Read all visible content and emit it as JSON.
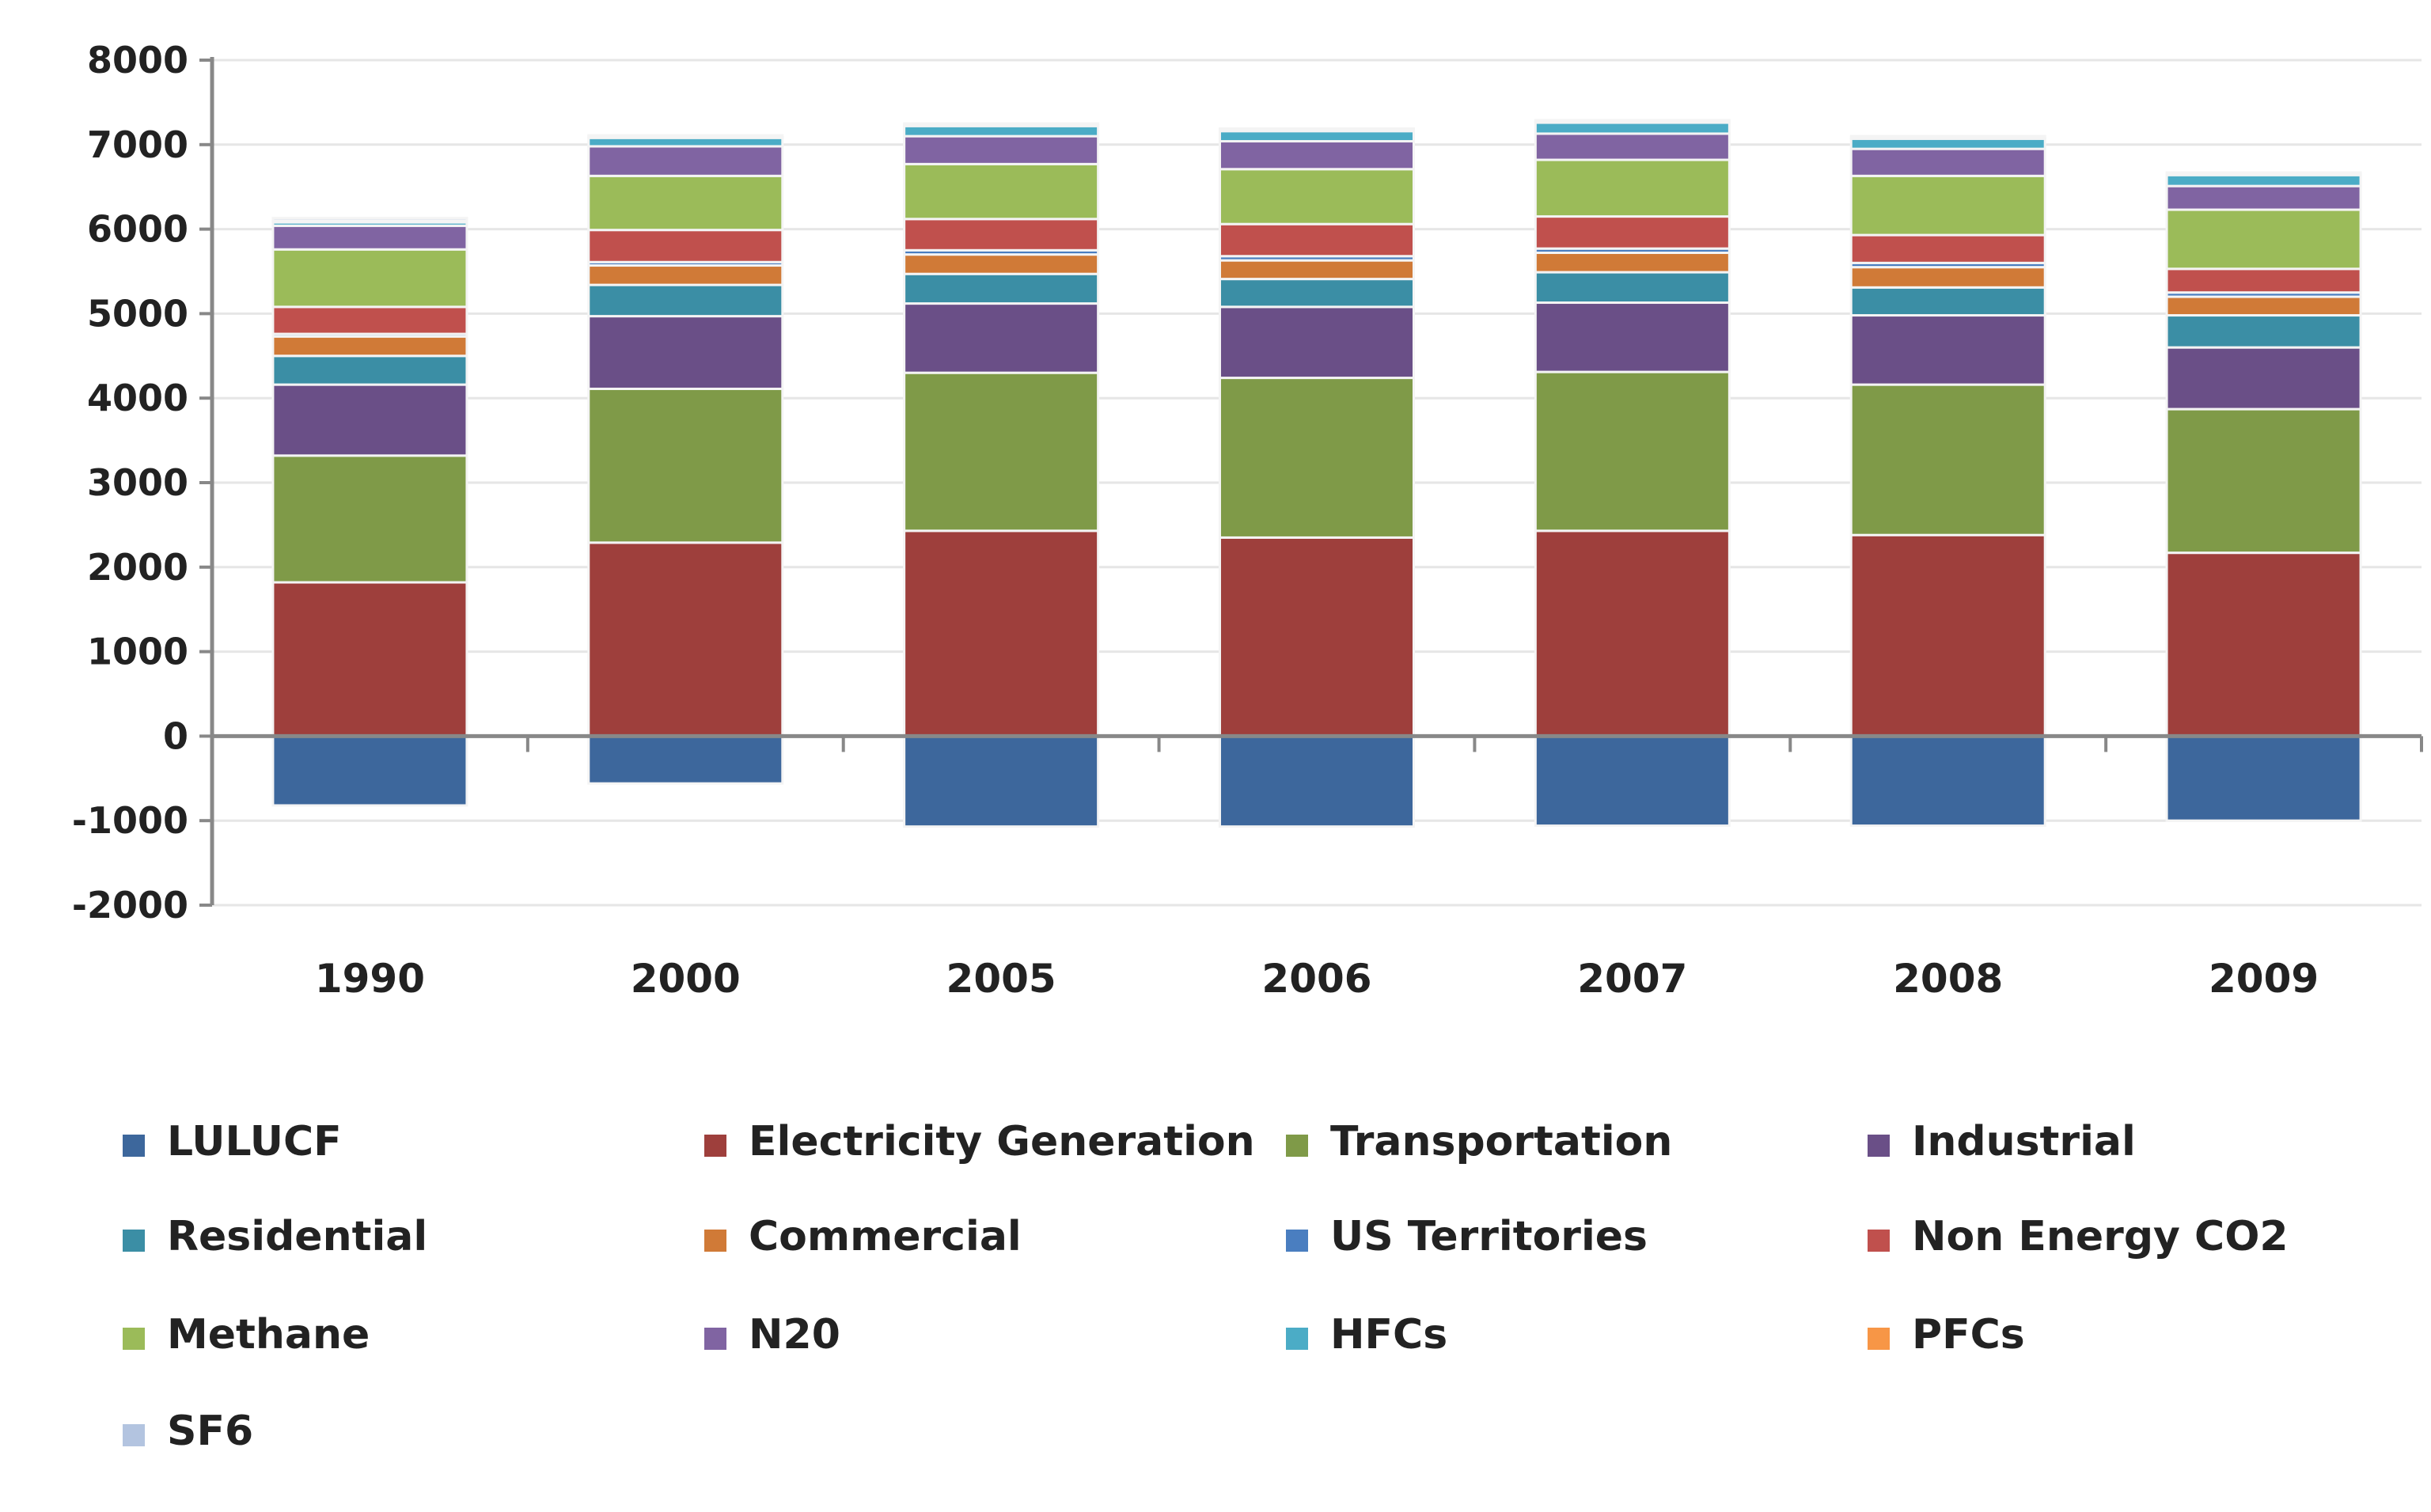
{
  "chart_data": {
    "type": "bar",
    "stacked": true,
    "title": "",
    "xlabel": "",
    "ylabel": "",
    "ylim": [
      -2000,
      8000
    ],
    "yticks": [
      8000,
      7000,
      6000,
      5000,
      4000,
      3000,
      2000,
      1000,
      0,
      -1000,
      -2000
    ],
    "grid": true,
    "legend_position": "bottom",
    "categories": [
      "1990",
      "2000",
      "2005",
      "2006",
      "2007",
      "2008",
      "2009"
    ],
    "series": [
      {
        "name": "LULUCF",
        "color": "#3d679c",
        "values": [
          -820,
          -560,
          -1070,
          -1070,
          -1060,
          -1060,
          -1000
        ]
      },
      {
        "name": "Electricity Generation",
        "color": "#9e3f3c",
        "values": [
          1820,
          2290,
          2430,
          2350,
          2430,
          2380,
          2170
        ]
      },
      {
        "name": "Transportation",
        "color": "#7f9a48",
        "values": [
          1500,
          1820,
          1870,
          1890,
          1880,
          1780,
          1700
        ]
      },
      {
        "name": "Industrial",
        "color": "#6a4f87",
        "values": [
          840,
          860,
          820,
          840,
          820,
          820,
          730
        ]
      },
      {
        "name": "Residential",
        "color": "#3b8ea5",
        "values": [
          340,
          370,
          350,
          330,
          360,
          330,
          380
        ]
      },
      {
        "name": "Commercial",
        "color": "#d07a37",
        "values": [
          230,
          230,
          230,
          220,
          230,
          240,
          220
        ]
      },
      {
        "name": "US Territories",
        "color": "#4a7ec0",
        "values": [
          30,
          40,
          50,
          50,
          50,
          50,
          50
        ]
      },
      {
        "name": "Non Energy CO2",
        "color": "#c0504d",
        "values": [
          320,
          380,
          370,
          380,
          380,
          330,
          280
        ]
      },
      {
        "name": "Methane",
        "color": "#9bbb59",
        "values": [
          680,
          640,
          650,
          650,
          670,
          700,
          700
        ]
      },
      {
        "name": "N20",
        "color": "#8064a2",
        "values": [
          280,
          350,
          330,
          330,
          310,
          320,
          280
        ]
      },
      {
        "name": "HFCs",
        "color": "#4bacc6",
        "values": [
          40,
          100,
          120,
          120,
          130,
          120,
          130
        ]
      },
      {
        "name": "PFCs",
        "color": "#f79646",
        "values": [
          20,
          10,
          10,
          10,
          10,
          10,
          10
        ]
      },
      {
        "name": "SF6",
        "color": "#b3c4e0",
        "values": [
          30,
          20,
          20,
          20,
          20,
          20,
          20
        ]
      }
    ]
  }
}
